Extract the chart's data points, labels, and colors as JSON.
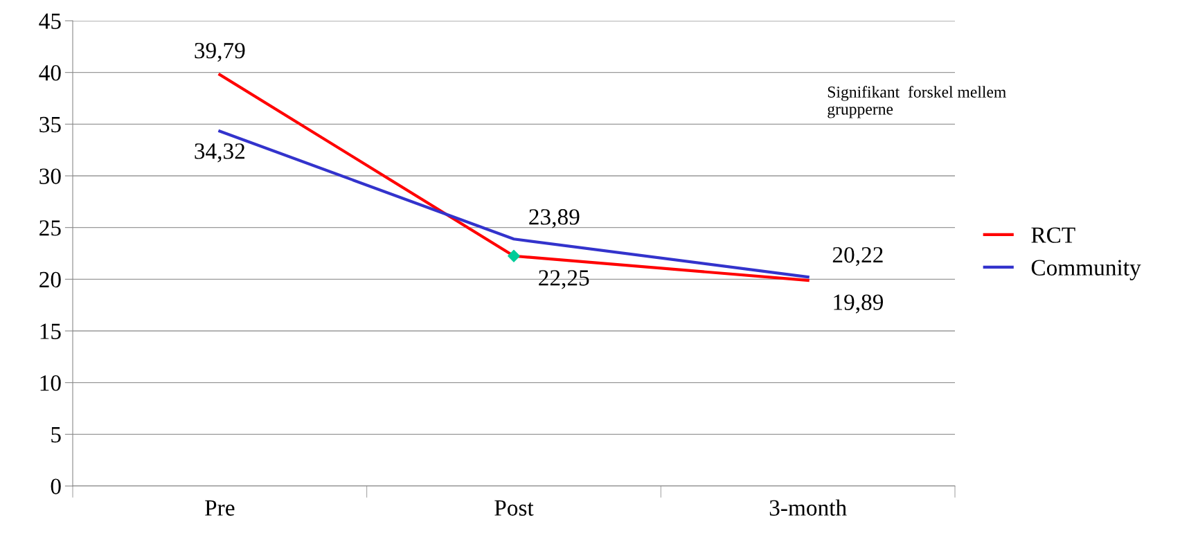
{
  "chart_data": {
    "type": "line",
    "categories": [
      "Pre",
      "Post",
      "3-month"
    ],
    "series": [
      {
        "name": "RCT",
        "color": "#ff0000",
        "values": [
          39.79,
          22.25,
          19.89
        ],
        "value_labels": [
          "39,79",
          "22,25",
          "19,89"
        ]
      },
      {
        "name": "Community",
        "color": "#3333cc",
        "values": [
          34.32,
          23.89,
          20.22
        ],
        "value_labels": [
          "34,32",
          "23,89",
          "20,22"
        ]
      },
      {
        "type": "scatter",
        "color": "#00cc99",
        "marker": "diamond",
        "x": [
          "Post"
        ],
        "values": [
          22.25
        ]
      }
    ],
    "ylim": [
      0,
      45
    ],
    "yticks": [
      0,
      5,
      10,
      15,
      20,
      25,
      30,
      35,
      40,
      45
    ],
    "grid": "y",
    "legend": "right",
    "marker": "none",
    "line_style": "solid",
    "annotations": [
      "Signifikant  forskel mellem grupperne"
    ]
  }
}
